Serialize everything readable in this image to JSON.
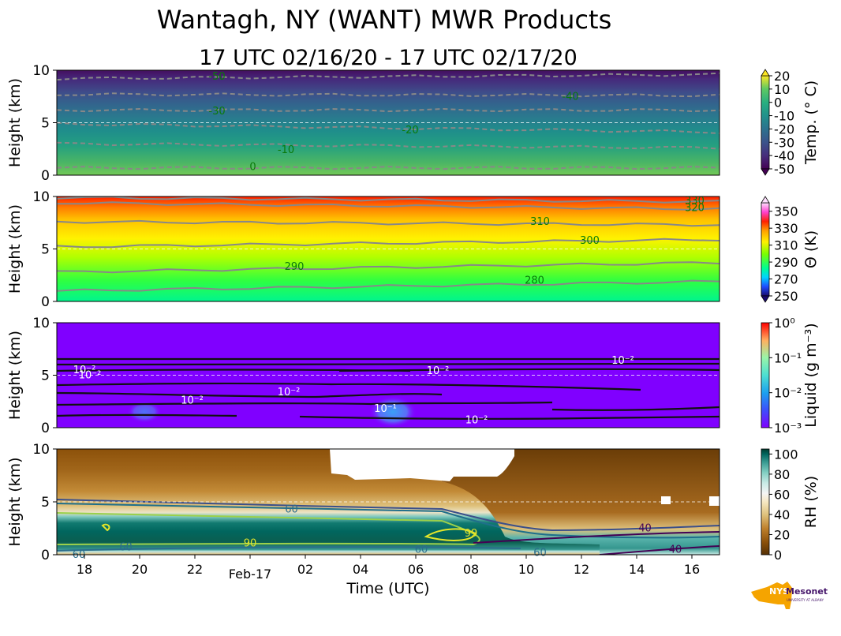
{
  "figure": {
    "title": "Wantagh, NY (WANT) MWR Products",
    "subtitle": "17 UTC 02/16/20 - 17 UTC 02/17/20",
    "xlabel": "Time (UTC)",
    "x_ticks": [
      "18",
      "20",
      "22",
      "Feb-17",
      "02",
      "04",
      "06",
      "08",
      "10",
      "12",
      "14",
      "16"
    ],
    "logo": {
      "main": "NYS Mesonet",
      "prefix": "NYS",
      "name": "Mesonet",
      "sub": "UNIVERSITY AT ALBANY"
    },
    "colors": {
      "ref_line": "#ffffff",
      "contour_gray": "#888888",
      "contour_label": "#0a7a0a",
      "logo_orange": "#f5a400",
      "logo_purple": "#46166b"
    }
  },
  "chart_data": [
    {
      "type": "heatmap",
      "name": "temperature",
      "ylabel": "Height (km)",
      "ylim": [
        0,
        10
      ],
      "y_ticks": [
        "0",
        "5",
        "10"
      ],
      "xlim_hours": [
        0,
        24
      ],
      "colorbar": {
        "label": "Temp. (° C)",
        "ticks": [
          "20",
          "10",
          "0",
          "-10",
          "-20",
          "-30",
          "-40",
          "-50"
        ],
        "range": [
          -50,
          20
        ]
      },
      "contours": [
        {
          "label": "0",
          "heights_km": [
            0.7,
            0.7
          ],
          "label_pos": [
            7.1,
            0.8
          ]
        },
        {
          "label": "-10",
          "heights_km": [
            3.0,
            2.6
          ],
          "label_pos": [
            8.3,
            2.4
          ]
        },
        {
          "label": "-20",
          "heights_km": [
            4.9,
            4.1
          ],
          "label_pos": [
            12.8,
            4.3
          ]
        },
        {
          "label": "-30",
          "heights_km": [
            6.2,
            6.2
          ],
          "label_pos": [
            5.8,
            6.1
          ]
        },
        {
          "label": "-40",
          "heights_km": [
            7.7,
            7.6
          ],
          "label_pos": [
            18.6,
            7.5
          ]
        },
        {
          "label": "-50",
          "heights_km": [
            9.2,
            9.6
          ],
          "label_pos": [
            5.8,
            9.4
          ]
        }
      ]
    },
    {
      "type": "heatmap",
      "name": "potential_temperature",
      "ylabel": "Height (km)",
      "ylim": [
        0,
        10
      ],
      "y_ticks": [
        "0",
        "5",
        "10"
      ],
      "colorbar": {
        "label": "Θ (K)",
        "ticks": [
          "350",
          "330",
          "310",
          "290",
          "270",
          "250"
        ],
        "range": [
          250,
          360
        ]
      },
      "contours": [
        {
          "label": "280",
          "heights_km": [
            1.0,
            1.9
          ],
          "label_pos": [
            17.3,
            2.0
          ]
        },
        {
          "label": "290",
          "heights_km": [
            2.8,
            3.7
          ],
          "label_pos": [
            8.6,
            3.3
          ]
        },
        {
          "label": "300",
          "heights_km": [
            5.2,
            5.9
          ],
          "label_pos": [
            19.3,
            5.8
          ]
        },
        {
          "label": "310",
          "heights_km": [
            7.6,
            7.3
          ],
          "label_pos": [
            17.5,
            7.6
          ]
        },
        {
          "label": "320",
          "heights_km": [
            9.4,
            8.8
          ],
          "label_pos": [
            23.1,
            8.9
          ]
        },
        {
          "label": "330",
          "heights_km": [
            9.9,
            9.5
          ],
          "label_pos": [
            23.1,
            9.6
          ]
        }
      ]
    },
    {
      "type": "heatmap",
      "name": "liquid",
      "ylabel": "Height (km)",
      "ylim": [
        0,
        10
      ],
      "y_ticks": [
        "0",
        "5",
        "10"
      ],
      "colorbar": {
        "label": "Liquid (g m⁻³)",
        "ticks": [
          "10⁰",
          "10⁻¹",
          "10⁻²",
          "10⁻³"
        ],
        "range": [
          0.001,
          1
        ]
      },
      "contour_labels": [
        {
          "text": "10⁻²",
          "pos": [
            1.0,
            5.5
          ]
        },
        {
          "text": "10⁻²",
          "pos": [
            1.2,
            5.0
          ]
        },
        {
          "text": "10⁻²",
          "pos": [
            4.9,
            2.6
          ]
        },
        {
          "text": "10⁻²",
          "pos": [
            8.4,
            3.4
          ]
        },
        {
          "text": "10⁻²",
          "pos": [
            13.8,
            5.4
          ]
        },
        {
          "text": "10⁻²",
          "pos": [
            20.5,
            6.4
          ]
        },
        {
          "text": "10⁻¹",
          "pos": [
            11.9,
            1.8
          ]
        },
        {
          "text": "10⁻²",
          "pos": [
            15.2,
            0.7
          ]
        }
      ]
    },
    {
      "type": "heatmap",
      "name": "relative_humidity",
      "ylabel": "Height (km)",
      "ylim": [
        0,
        10
      ],
      "y_ticks": [
        "0",
        "5",
        "10"
      ],
      "colorbar": {
        "label": "RH (%)",
        "ticks": [
          "100",
          "80",
          "60",
          "40",
          "20",
          "0"
        ],
        "range": [
          0,
          105
        ]
      },
      "contour_labels": [
        {
          "text": "60",
          "pos": [
            8.5,
            4.3
          ]
        },
        {
          "text": "40",
          "pos": [
            21.3,
            2.5
          ]
        },
        {
          "text": "99",
          "pos": [
            15.0,
            2.0
          ]
        },
        {
          "text": "90",
          "pos": [
            7.0,
            1.1
          ]
        },
        {
          "text": "60",
          "pos": [
            2.5,
            0.7
          ]
        },
        {
          "text": "60",
          "pos": [
            13.2,
            0.5
          ]
        },
        {
          "text": "60",
          "pos": [
            17.5,
            0.2
          ]
        },
        {
          "text": "40",
          "pos": [
            22.4,
            0.5
          ]
        },
        {
          "text": "60",
          "pos": [
            0.8,
            0.0
          ]
        }
      ]
    }
  ]
}
